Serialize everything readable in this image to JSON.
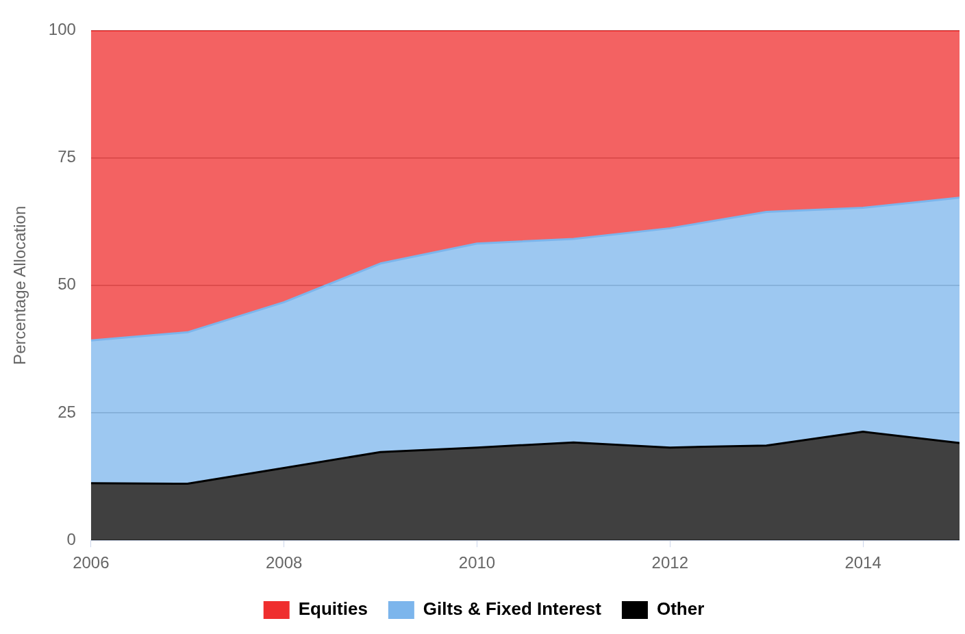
{
  "chart_data": {
    "type": "area",
    "stacked": true,
    "ylabel": "Percentage Allocation",
    "x": [
      2006,
      2007,
      2008,
      2009,
      2010,
      2011,
      2012,
      2013,
      2014,
      2015
    ],
    "series": [
      {
        "name": "Other",
        "color": "#000000",
        "values": [
          11.2,
          11.1,
          14.2,
          17.3,
          18.2,
          19.2,
          18.2,
          18.6,
          21.3,
          19.1
        ]
      },
      {
        "name": "Gilts & Fixed Interest",
        "color": "#7cb5ec",
        "values": [
          28.0,
          29.7,
          32.5,
          37.0,
          40.0,
          39.9,
          43.0,
          45.8,
          43.9,
          48.1
        ]
      },
      {
        "name": "Equities",
        "color": "#ef2e2e",
        "values": [
          60.8,
          59.2,
          53.3,
          45.7,
          41.8,
          40.9,
          38.8,
          35.6,
          34.8,
          32.8
        ]
      }
    ],
    "xlim": [
      2006,
      2015
    ],
    "xticks": [
      2006,
      2008,
      2010,
      2012,
      2014
    ],
    "ylim": [
      0,
      100
    ],
    "yticks": [
      0,
      25,
      50,
      75,
      100
    ],
    "grid": "y",
    "legend": "bottom"
  }
}
